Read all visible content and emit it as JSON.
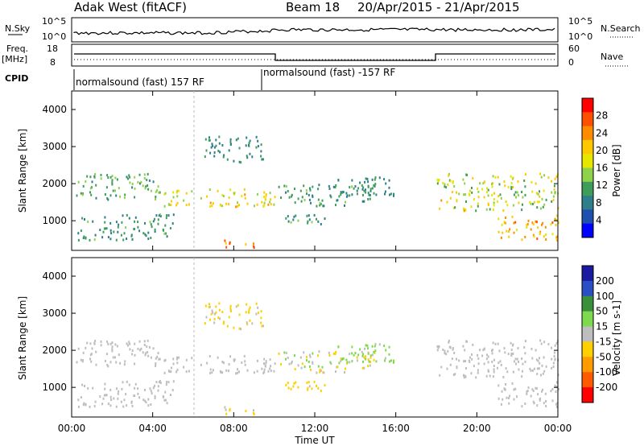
{
  "header": {
    "station": "Adak West (fitACF)",
    "beam": "Beam 18",
    "date_range": "20/Apr/2015 - 21/Apr/2015"
  },
  "top_panels": {
    "nsky_label": "N.Sky",
    "nsky_ticks": [
      "10^5",
      "10^0"
    ],
    "nsearch_label": "N.Search",
    "nsearch_ticks": [
      "10^5",
      "10^0"
    ],
    "freq_label": "Freq.",
    "freq_unit": "[MHz]",
    "freq_ticks": [
      "18",
      "8"
    ],
    "nave_label": "Nave",
    "nave_ticks": [
      "60",
      "0"
    ],
    "cpid_label": "CPID",
    "cpid_segments": [
      "normalsound (fast) 157 RF",
      "normalsound (fast) -157 RF"
    ]
  },
  "axes": {
    "ylabel": "Slant Range [km]",
    "yticks": [
      "4000",
      "3000",
      "2000",
      "1000"
    ],
    "xlabel": "Time UT",
    "xticks": [
      "00:00",
      "04:00",
      "08:00",
      "12:00",
      "16:00",
      "20:00",
      "00:00"
    ]
  },
  "colorbars": {
    "power_label": "Power [dB]",
    "power_ticks": [
      "28",
      "24",
      "20",
      "16",
      "12",
      "8",
      "4"
    ],
    "power_colors": [
      "#ff0000",
      "#ff5000",
      "#ff8c00",
      "#ffc800",
      "#e6e600",
      "#8ed14a",
      "#3e9d5a",
      "#2e7f8a",
      "#1c4fae",
      "#0000ff"
    ],
    "velocity_label": "Velocity [m s-1]",
    "velocity_ticks": [
      "200",
      "100",
      "50",
      "15",
      "-15",
      "-50",
      "-100",
      "-200"
    ],
    "velocity_colors": [
      "#1a1aa0",
      "#2a4fc4",
      "#3a8f3a",
      "#7fd94f",
      "#bebebe",
      "#ffd000",
      "#ff9a00",
      "#ff5a00",
      "#ff0000"
    ]
  },
  "chart_data": {
    "type": "heatmap",
    "title": "Adak West (fitACF) Beam 18 20/Apr/2015 - 21/Apr/2015",
    "x_range_hours": [
      0,
      24
    ],
    "y_range_km": [
      200,
      4500
    ],
    "series": [
      {
        "name": "Power [dB]",
        "value_range": [
          0,
          30
        ]
      },
      {
        "name": "Velocity [m s-1]",
        "value_range": [
          -250,
          250
        ]
      }
    ]
  }
}
